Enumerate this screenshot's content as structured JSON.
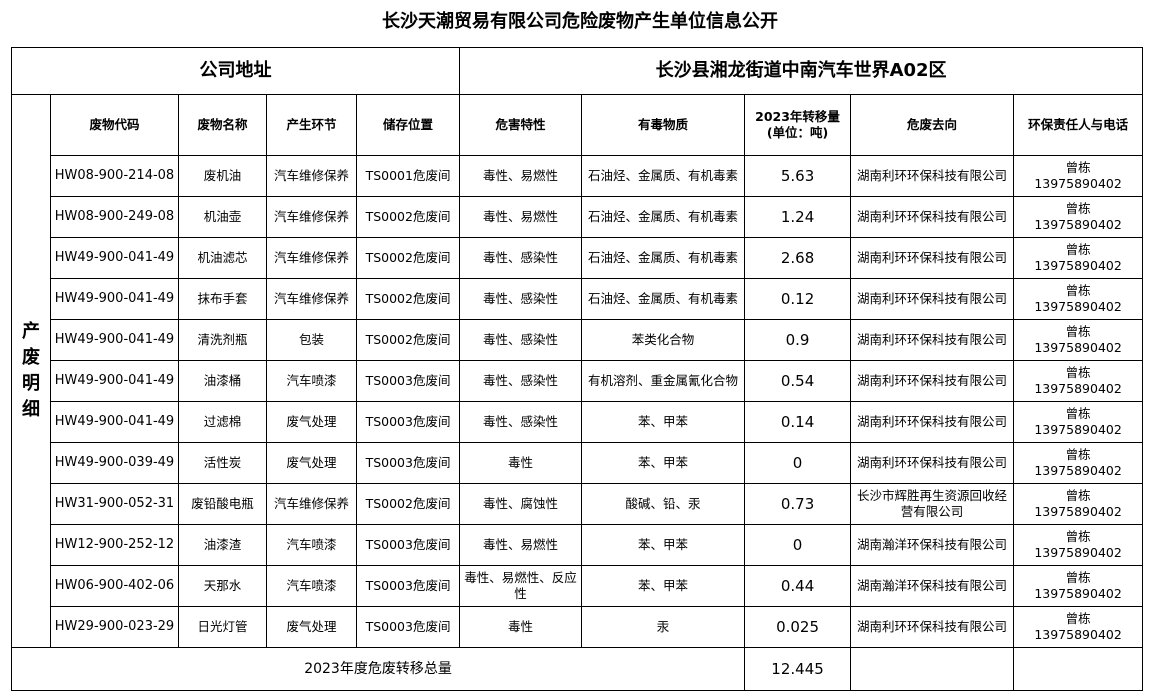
{
  "title": "长沙天潮贸易有限公司危险废物产生单位信息公开",
  "address": {
    "label": "公司地址",
    "value": "长沙县湘龙街道中南汽车世界A02区"
  },
  "section_label": "产废明细",
  "columns": {
    "code": "废物代码",
    "name": "废物名称",
    "stage": "产生环节",
    "storage": "储存位置",
    "hazard": "危害特性",
    "toxic": "有毒物质",
    "amount_line1": "2023年转移量",
    "amount_line2": "(单位：吨)",
    "destination": "危废去向",
    "contact": "环保责任人与电话"
  },
  "rows": [
    {
      "code": "HW08-900-214-08",
      "name": "废机油",
      "stage": "汽车维修保养",
      "storage": "TS0001危废间",
      "hazard": "毒性、易燃性",
      "toxic": "石油烃、金属质、有机毒素",
      "amount": "5.63",
      "destination": "湖南利环环保科技有限公司",
      "person": "曾栋",
      "phone": "13975890402"
    },
    {
      "code": "HW08-900-249-08",
      "name": "机油壶",
      "stage": "汽车维修保养",
      "storage": "TS0002危废间",
      "hazard": "毒性、易燃性",
      "toxic": "石油烃、金属质、有机毒素",
      "amount": "1.24",
      "destination": "湖南利环环保科技有限公司",
      "person": "曾栋",
      "phone": "13975890402"
    },
    {
      "code": "HW49-900-041-49",
      "name": "机油滤芯",
      "stage": "汽车维修保养",
      "storage": "TS0002危废间",
      "hazard": "毒性、感染性",
      "toxic": "石油烃、金属质、有机毒素",
      "amount": "2.68",
      "destination": "湖南利环环保科技有限公司",
      "person": "曾栋",
      "phone": "13975890402"
    },
    {
      "code": "HW49-900-041-49",
      "name": "抹布手套",
      "stage": "汽车维修保养",
      "storage": "TS0002危废间",
      "hazard": "毒性、感染性",
      "toxic": "石油烃、金属质、有机毒素",
      "amount": "0.12",
      "destination": "湖南利环环保科技有限公司",
      "person": "曾栋",
      "phone": "13975890402"
    },
    {
      "code": "HW49-900-041-49",
      "name": "清洗剂瓶",
      "stage": "包装",
      "storage": "TS0002危废间",
      "hazard": "毒性、感染性",
      "toxic": "苯类化合物",
      "amount": "0.9",
      "destination": "湖南利环环保科技有限公司",
      "person": "曾栋",
      "phone": "13975890402"
    },
    {
      "code": "HW49-900-041-49",
      "name": "油漆桶",
      "stage": "汽车喷漆",
      "storage": "TS0003危废间",
      "hazard": "毒性、感染性",
      "toxic": "有机溶剂、重金属氰化合物",
      "amount": "0.54",
      "destination": "湖南利环环保科技有限公司",
      "person": "曾栋",
      "phone": "13975890402"
    },
    {
      "code": "HW49-900-041-49",
      "name": "过滤棉",
      "stage": "废气处理",
      "storage": "TS0003危废间",
      "hazard": "毒性、感染性",
      "toxic": "苯、甲苯",
      "amount": "0.14",
      "destination": "湖南利环环保科技有限公司",
      "person": "曾栋",
      "phone": "13975890402"
    },
    {
      "code": "HW49-900-039-49",
      "name": "活性炭",
      "stage": "废气处理",
      "storage": "TS0003危废间",
      "hazard": "毒性",
      "toxic": "苯、甲苯",
      "amount": "0",
      "destination": "湖南利环环保科技有限公司",
      "person": "曾栋",
      "phone": "13975890402"
    },
    {
      "code": "HW31-900-052-31",
      "name": "废铅酸电瓶",
      "stage": "汽车维修保养",
      "storage": "TS0002危废间",
      "hazard": "毒性、腐蚀性",
      "toxic": "酸碱、铅、汞",
      "amount": "0.73",
      "destination": "长沙市辉胜再生资源回收经营有限公司",
      "person": "曾栋",
      "phone": "13975890402"
    },
    {
      "code": "HW12-900-252-12",
      "name": "油漆渣",
      "stage": "汽车喷漆",
      "storage": "TS0003危废间",
      "hazard": "毒性、易燃性",
      "toxic": "苯、甲苯",
      "amount": "0",
      "destination": "湖南瀚洋环保科技有限公司",
      "person": "曾栋",
      "phone": "13975890402"
    },
    {
      "code": "HW06-900-402-06",
      "name": "天那水",
      "stage": "汽车喷漆",
      "storage": "TS0003危废间",
      "hazard": "毒性、易燃性、反应性",
      "toxic": "苯、甲苯",
      "amount": "0.44",
      "destination": "湖南瀚洋环保科技有限公司",
      "person": "曾栋",
      "phone": "13975890402"
    },
    {
      "code": "HW29-900-023-29",
      "name": "日光灯管",
      "stage": "废气处理",
      "storage": "TS0003危废间",
      "hazard": "毒性",
      "toxic": "汞",
      "amount": "0.025",
      "destination": "湖南利环环保科技有限公司",
      "person": "曾栋",
      "phone": "13975890402"
    }
  ],
  "total": {
    "label": "2023年度危废转移总量",
    "value": "12.445"
  }
}
